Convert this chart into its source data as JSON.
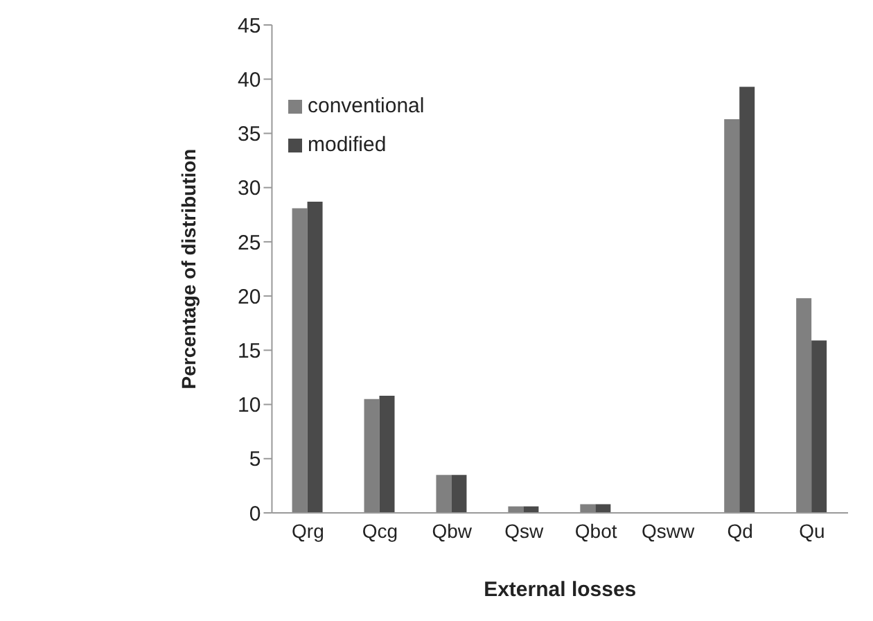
{
  "chart_data": {
    "type": "bar",
    "xlabel": "External losses",
    "ylabel": "Percentage of distribution",
    "categories": [
      "Qrg",
      "Qcg",
      "Qbw",
      "Qsw",
      "Qbot",
      "Qsww",
      "Qd",
      "Qu"
    ],
    "series": [
      {
        "name": "conventional",
        "color": "#808080",
        "values": [
          28.1,
          10.5,
          3.5,
          0.6,
          0.8,
          0,
          36.3,
          19.8
        ]
      },
      {
        "name": "modified",
        "color": "#4a4a4a",
        "values": [
          28.7,
          10.8,
          3.5,
          0.6,
          0.8,
          0,
          39.3,
          15.9
        ]
      }
    ],
    "ylim": [
      0,
      45
    ],
    "yticks": [
      0,
      5,
      10,
      15,
      20,
      25,
      30,
      35,
      40,
      45
    ],
    "grid": false,
    "legend": "top left"
  }
}
